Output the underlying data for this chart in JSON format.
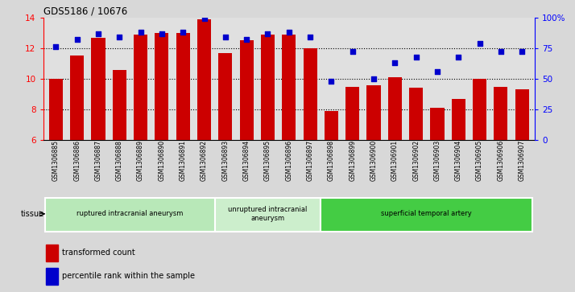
{
  "title": "GDS5186 / 10676",
  "samples": [
    "GSM1306885",
    "GSM1306886",
    "GSM1306887",
    "GSM1306888",
    "GSM1306889",
    "GSM1306890",
    "GSM1306891",
    "GSM1306892",
    "GSM1306893",
    "GSM1306894",
    "GSM1306895",
    "GSM1306896",
    "GSM1306897",
    "GSM1306898",
    "GSM1306899",
    "GSM1306900",
    "GSM1306901",
    "GSM1306902",
    "GSM1306903",
    "GSM1306904",
    "GSM1306905",
    "GSM1306906",
    "GSM1306907"
  ],
  "bar_values": [
    10.0,
    11.5,
    12.7,
    10.6,
    12.9,
    13.0,
    13.0,
    13.9,
    11.7,
    12.5,
    12.9,
    12.9,
    12.0,
    7.9,
    9.5,
    9.6,
    10.1,
    9.4,
    8.1,
    8.7,
    10.0,
    9.5,
    9.3
  ],
  "dot_values_pct": [
    76,
    82,
    87,
    84,
    88,
    87,
    88,
    99,
    84,
    82,
    87,
    88,
    84,
    48,
    72,
    50,
    63,
    68,
    56,
    68,
    79,
    72,
    72
  ],
  "bar_color": "#cc0000",
  "dot_color": "#0000cc",
  "ylim_left": [
    6,
    14
  ],
  "ylim_right": [
    0,
    100
  ],
  "yticks_left": [
    6,
    8,
    10,
    12,
    14
  ],
  "yticks_right": [
    0,
    25,
    50,
    75,
    100
  ],
  "ytick_labels_right": [
    "0",
    "25",
    "50",
    "75",
    "100%"
  ],
  "fig_bg_color": "#d8d8d8",
  "plot_bg_color": "#e0e0e0",
  "groups": [
    {
      "label": "ruptured intracranial aneurysm",
      "start": 0,
      "end": 8,
      "color": "#b8e8b8"
    },
    {
      "label": "unruptured intracranial\naneurysm",
      "start": 8,
      "end": 13,
      "color": "#cceecc"
    },
    {
      "label": "superficial temporal artery",
      "start": 13,
      "end": 23,
      "color": "#44cc44"
    }
  ],
  "tissue_label": "tissue",
  "legend_bar_label": "transformed count",
  "legend_dot_label": "percentile rank within the sample",
  "gridlines": [
    8,
    10,
    12
  ]
}
